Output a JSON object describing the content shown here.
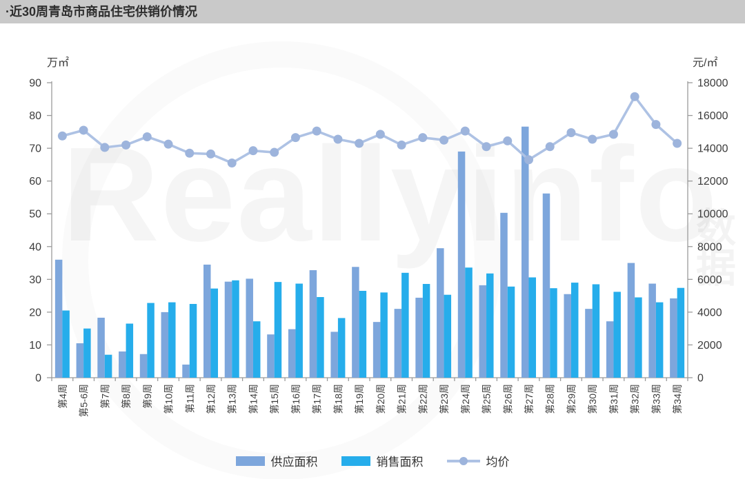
{
  "title": "·近30周青岛市商品住宅供销价情况",
  "watermark": {
    "brand": "Reallyinfo",
    "cjk": "数据"
  },
  "legend": {
    "supply": "供应面积",
    "sales": "销售面积",
    "price": "均价"
  },
  "chart_data": {
    "type": "bar",
    "subtype": "grouped-bars-with-line",
    "title": "近30周青岛市商品住宅供销价情况",
    "categories": [
      "第4周",
      "第5-6周",
      "第7周",
      "第8周",
      "第9周",
      "第10周",
      "第11周",
      "第12周",
      "第13周",
      "第14周",
      "第15周",
      "第16周",
      "第17周",
      "第18周",
      "第19周",
      "第20周",
      "第21周",
      "第22周",
      "第23周",
      "第24周",
      "第25周",
      "第26周",
      "第27周",
      "第28周",
      "第29周",
      "第30周",
      "第31周",
      "第32周",
      "第33周",
      "第34周"
    ],
    "series": [
      {
        "name": "供应面积",
        "type": "bar",
        "axis": "left",
        "color": "#7da6dc",
        "values": [
          36.0,
          10.5,
          18.3,
          8.0,
          7.2,
          20.0,
          4.0,
          34.5,
          29.3,
          30.2,
          13.2,
          14.8,
          32.8,
          14.0,
          33.8,
          17.0,
          21.0,
          24.4,
          39.5,
          69.0,
          28.2,
          50.3,
          76.6,
          56.2,
          25.5,
          21.0,
          17.2,
          35.0,
          28.7,
          24.2
        ]
      },
      {
        "name": "销售面积",
        "type": "bar",
        "axis": "left",
        "color": "#26adeb",
        "values": [
          20.5,
          15.0,
          7.0,
          16.5,
          22.8,
          23.0,
          22.5,
          27.2,
          29.7,
          17.2,
          29.2,
          28.7,
          24.6,
          18.2,
          26.5,
          26.0,
          32.0,
          28.6,
          25.3,
          33.6,
          31.8,
          27.8,
          30.6,
          27.3,
          29.0,
          28.5,
          26.2,
          24.5,
          23.0,
          27.4
        ]
      },
      {
        "name": "均价",
        "type": "line",
        "axis": "right",
        "color": "#aec2e4",
        "marker_color": "#9db4dc",
        "values": [
          14750,
          15100,
          14050,
          14200,
          14700,
          14250,
          13700,
          13650,
          13100,
          13850,
          13750,
          14650,
          15050,
          14550,
          14300,
          14850,
          14200,
          14650,
          14500,
          15050,
          14100,
          14450,
          13300,
          14100,
          14950,
          14550,
          14850,
          17150,
          15450,
          14300
        ]
      }
    ],
    "left_axis": {
      "label": "万㎡",
      "min": 0,
      "max": 90,
      "step": 10,
      "ticks": [
        0,
        10,
        20,
        30,
        40,
        50,
        60,
        70,
        80,
        90
      ]
    },
    "right_axis": {
      "label": "元/㎡",
      "min": 0,
      "max": 18000,
      "step": 2000,
      "ticks": [
        0,
        2000,
        4000,
        6000,
        8000,
        10000,
        12000,
        14000,
        16000,
        18000
      ]
    },
    "grid": false,
    "legend_position": "bottom"
  }
}
